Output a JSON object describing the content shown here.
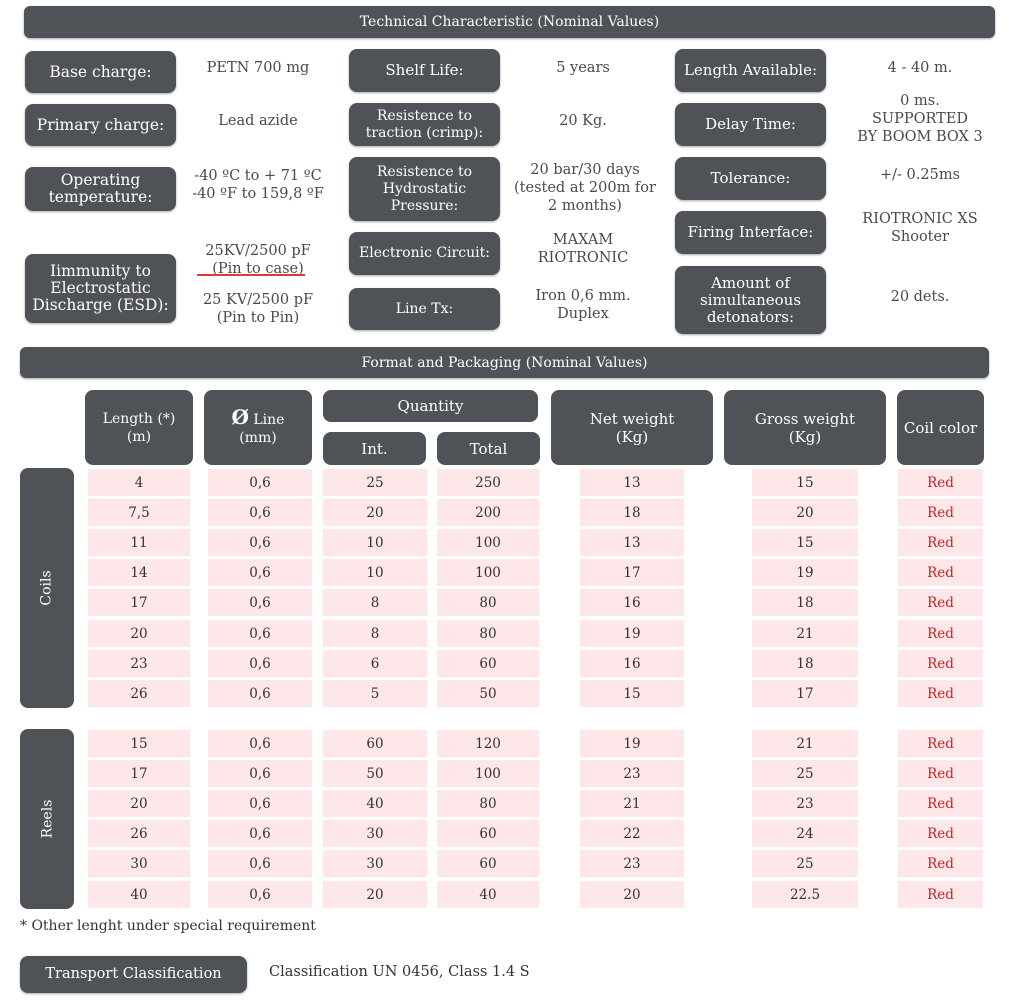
{
  "tech": {
    "title": "Technical Characteristic (Nominal Values)",
    "base_charge_label": "Base charge:",
    "base_charge_value": "PETN 700 mg",
    "primary_charge_label": "Primary charge:",
    "primary_charge_value": "Lead azide",
    "operating_temp_label": "Operating\ntemperature:",
    "operating_temp_value": "-40 ºC to + 71 ºC\n-40 ºF to 159,8 ºF",
    "esd_label": "Iimmunity to\nElectrostatic\nDischarge (ESD):",
    "esd_value_1": "25KV/2500 pF\n(Pin to case)",
    "esd_value_2": "25 KV/2500 pF\n(Pin to Pin)",
    "shelf_life_label": "Shelf Life:",
    "shelf_life_value": "5 years",
    "traction_label": "Resistence to\ntraction (crimp):",
    "traction_value": "20 Kg.",
    "hydrostatic_label": "Resistence to\nHydrostatic\nPressure:",
    "hydrostatic_value": "20 bar/30 days\n(tested at 200m for\n2 months)",
    "circuit_label": "Electronic Circuit:",
    "circuit_value": "MAXAM\nRIOTRONIC",
    "line_tx_label": "Line Tx:",
    "line_tx_value": "Iron 0,6 mm.\nDuplex",
    "length_label": "Length Available:",
    "length_value": "4  - 40 m.",
    "delay_label": "Delay Time:",
    "delay_value": "0 ms.\nSUPPORTED\nBY BOOM BOX 3",
    "tolerance_label": "Tolerance:",
    "tolerance_value": "+/- 0.25ms",
    "firing_label": "Firing Interface:",
    "firing_value": "RIOTRONIC XS\nShooter",
    "simultaneous_label": "Amount of\nsimultaneous\ndetonators:",
    "simultaneous_value": "20 dets."
  },
  "packaging": {
    "title": "Format and Packaging (Nominal Values)",
    "headers": {
      "length": "Length (*)\n(m)",
      "line_symbol": "Ø",
      "line": " Line\n(mm)",
      "quantity": "Quantity",
      "int": "Int.",
      "total": "Total",
      "net": "Net weight\n(Kg)",
      "gross": "Gross weight\n(Kg)",
      "color": "Coil color"
    },
    "coils_label": "Coils",
    "reels_label": "Reels",
    "coils": [
      [
        "4",
        "0,6",
        "25",
        "250",
        "13",
        "15",
        "Red"
      ],
      [
        "7,5",
        "0,6",
        "20",
        "200",
        "18",
        "20",
        "Red"
      ],
      [
        "11",
        "0,6",
        "10",
        "100",
        "13",
        "15",
        "Red"
      ],
      [
        "14",
        "0,6",
        "10",
        "100",
        "17",
        "19",
        "Red"
      ],
      [
        "17",
        "0,6",
        "8",
        "80",
        "16",
        "18",
        "Red"
      ],
      [
        "20",
        "0,6",
        "8",
        "80",
        "19",
        "21",
        "Red"
      ],
      [
        "23",
        "0,6",
        "6",
        "60",
        "16",
        "18",
        "Red"
      ],
      [
        "26",
        "0,6",
        "5",
        "50",
        "15",
        "17",
        "Red"
      ]
    ],
    "reels": [
      [
        "15",
        "0,6",
        "60",
        "120",
        "19",
        "21",
        "Red"
      ],
      [
        "17",
        "0,6",
        "50",
        "100",
        "23",
        "25",
        "Red"
      ],
      [
        "20",
        "0,6",
        "40",
        "80",
        "21",
        "23",
        "Red"
      ],
      [
        "26",
        "0,6",
        "30",
        "60",
        "22",
        "24",
        "Red"
      ],
      [
        "30",
        "0,6",
        "30",
        "60",
        "23",
        "25",
        "Red"
      ],
      [
        "40",
        "0,6",
        "20",
        "40",
        "20",
        "22.5",
        "Red"
      ]
    ],
    "footnote": "* Other lenght under special requirement"
  },
  "transport": {
    "label": "Transport Classification",
    "value": "Classification UN 0456, Class 1.4 S"
  },
  "colors": {
    "header_bg": "#4f5257",
    "cell_bg": "#fde7e8",
    "red_text": "#cc1f24"
  }
}
